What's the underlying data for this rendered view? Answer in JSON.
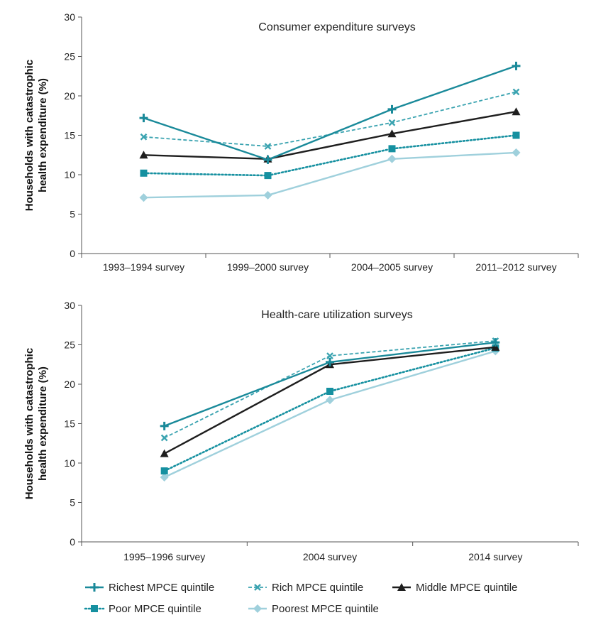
{
  "chart_data": [
    {
      "type": "line",
      "title": "Consumer expenditure surveys",
      "xlabel": "",
      "ylabel": "Households with catastrophic health expenditure (%)",
      "ylabel_lines": [
        "Households with catastrophic",
        "health expenditure (%)"
      ],
      "categories": [
        "1993–1994 survey",
        "1999–2000 survey",
        "2004–2005 survey",
        "2011–2012 survey"
      ],
      "ylim": [
        0,
        30
      ],
      "yticks": [
        0,
        5,
        10,
        15,
        20,
        25,
        30
      ],
      "grid": false,
      "series": [
        {
          "name": "Richest MPCE quintile",
          "values": [
            17.2,
            11.9,
            18.3,
            23.8
          ]
        },
        {
          "name": "Rich MPCE quintile",
          "values": [
            14.8,
            13.6,
            16.6,
            20.5
          ]
        },
        {
          "name": "Middle MPCE quintile",
          "values": [
            12.5,
            12.0,
            15.2,
            18.0
          ]
        },
        {
          "name": "Poor MPCE quintile",
          "values": [
            10.2,
            9.9,
            13.3,
            15.0
          ]
        },
        {
          "name": "Poorest MPCE quintile",
          "values": [
            7.1,
            7.4,
            12.0,
            12.8
          ]
        }
      ]
    },
    {
      "type": "line",
      "title": "Health-care utilization surveys",
      "xlabel": "",
      "ylabel": "Households with catastrophic health expenditure (%)",
      "ylabel_lines": [
        "Households with catastrophic",
        "health expenditure (%)"
      ],
      "categories": [
        "1995–1996 survey",
        "2004 survey",
        "2014 survey"
      ],
      "ylim": [
        0,
        30
      ],
      "yticks": [
        0,
        5,
        10,
        15,
        20,
        25,
        30
      ],
      "grid": false,
      "series": [
        {
          "name": "Richest MPCE quintile",
          "values": [
            14.7,
            22.8,
            25.3
          ]
        },
        {
          "name": "Rich MPCE quintile",
          "values": [
            13.2,
            23.6,
            25.5
          ]
        },
        {
          "name": "Middle MPCE quintile",
          "values": [
            11.2,
            22.5,
            24.7
          ]
        },
        {
          "name": "Poor MPCE quintile",
          "values": [
            9.0,
            19.1,
            24.6
          ]
        },
        {
          "name": "Poorest MPCE quintile",
          "values": [
            8.2,
            18.0,
            24.2
          ]
        }
      ]
    }
  ],
  "legend": {
    "placement": "bottom",
    "items": [
      "Richest MPCE quintile",
      "Rich MPCE quintile",
      "Middle MPCE quintile",
      "Poor MPCE quintile",
      "Poorest MPCE quintile"
    ]
  },
  "series_styles": [
    {
      "name": "Richest MPCE quintile",
      "color": "#1a8a9a",
      "marker": "plus",
      "dash": "solid"
    },
    {
      "name": "Rich MPCE quintile",
      "color": "#3aa3b0",
      "marker": "x",
      "dash": "dashed"
    },
    {
      "name": "Middle MPCE quintile",
      "color": "#1e1e1e",
      "marker": "triangle",
      "dash": "solid"
    },
    {
      "name": "Poor MPCE quintile",
      "color": "#1590a0",
      "marker": "square",
      "dash": "dotted"
    },
    {
      "name": "Poorest MPCE quintile",
      "color": "#9fd0dc",
      "marker": "diamond",
      "dash": "solid"
    }
  ]
}
